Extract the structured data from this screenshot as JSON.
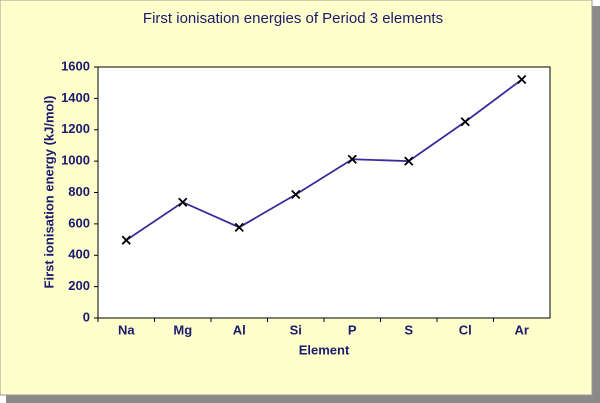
{
  "chart_data": {
    "type": "line",
    "title": "First ionisation energies of Period 3 elements",
    "x_label": "Element",
    "y_label": "First ionisation energy (kJ/mol)",
    "categories": [
      "Na",
      "Mg",
      "Al",
      "Si",
      "P",
      "S",
      "Cl",
      "Ar"
    ],
    "series": [
      {
        "name": "First ionisation energy",
        "color": "#3a2a9a",
        "values": [
          496,
          738,
          578,
          787,
          1012,
          1000,
          1251,
          1520
        ]
      }
    ],
    "ylim": [
      0,
      1600
    ],
    "yticks": [
      0,
      200,
      400,
      600,
      800,
      1000,
      1200,
      1400,
      1600
    ],
    "grid": false
  }
}
